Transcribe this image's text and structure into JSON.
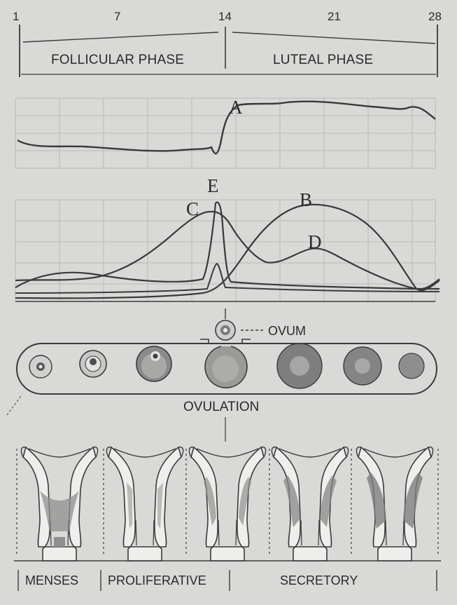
{
  "day_labels": [
    "1",
    "7",
    "14",
    "21",
    "28"
  ],
  "phases": {
    "follicular": "FOLLICULAR PHASE",
    "luteal": "LUTEAL PHASE"
  },
  "curve_labels": {
    "a": "A",
    "b": "B",
    "c": "C",
    "d": "D",
    "e": "E"
  },
  "ovary": {
    "ovum_label": "OVUM",
    "ovulation_label": "OVULATION"
  },
  "uterine_stages": {
    "menses": "MENSES",
    "proliferative": "PROLIFERATIVE",
    "secretory": "SECRETORY"
  },
  "colors": {
    "background": "#d9d9d7",
    "line": "#3a3a3a",
    "grid": "#b9b9b7",
    "shading": "#8f8f8f"
  }
}
